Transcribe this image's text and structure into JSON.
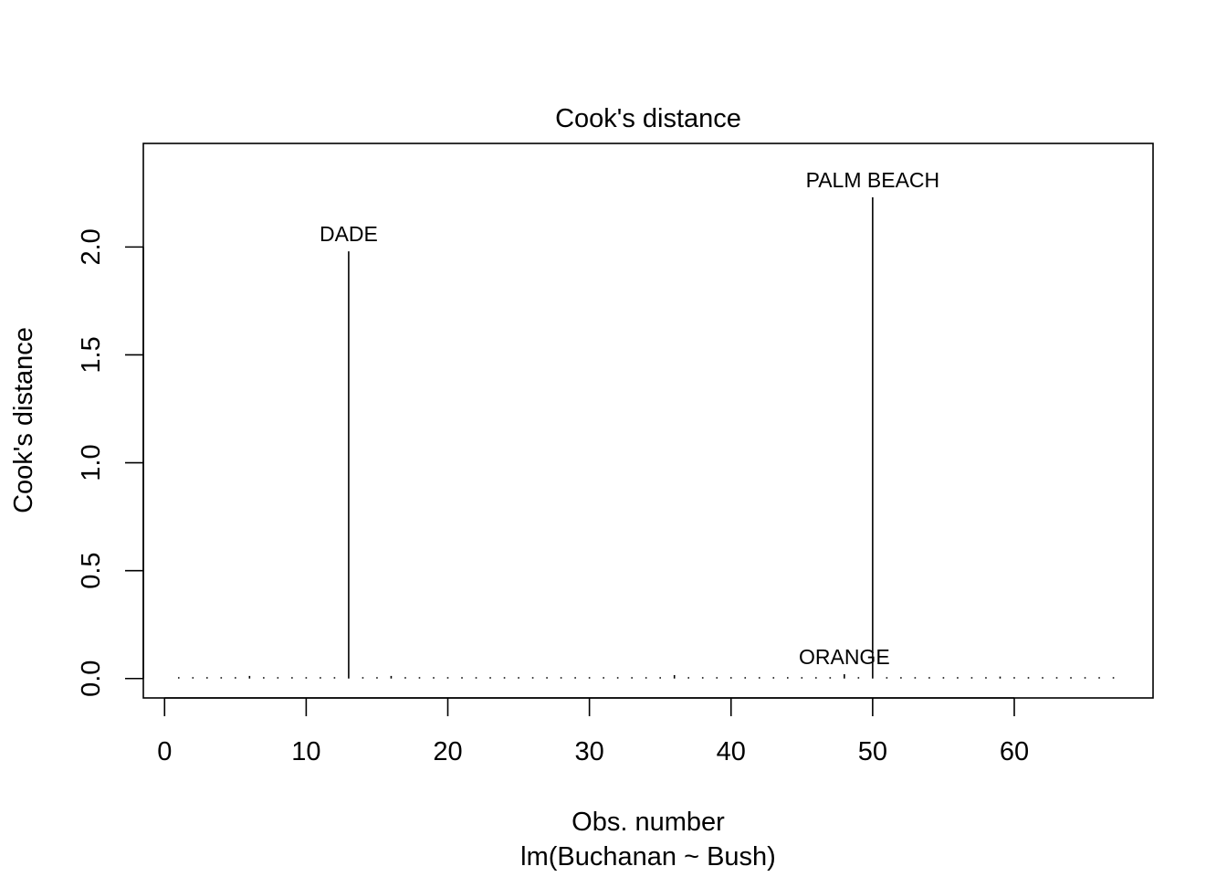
{
  "chart_data": {
    "type": "bar",
    "title": "Cook's distance",
    "xlabel": "Obs. number",
    "subtitle": "lm(Buchanan ~ Bush)",
    "ylabel": "Cook's distance",
    "xlim": [
      -1.5,
      69.8
    ],
    "ylim": [
      -0.09,
      2.48
    ],
    "x_ticks": [
      0,
      10,
      20,
      30,
      40,
      50,
      60
    ],
    "y_ticks": [
      0.0,
      0.5,
      1.0,
      1.5,
      2.0
    ],
    "x_tick_labels": [
      "0",
      "10",
      "20",
      "30",
      "40",
      "50",
      "60"
    ],
    "y_tick_labels": [
      "0.0",
      "0.5",
      "1.0",
      "1.5",
      "2.0"
    ],
    "x": [
      1,
      2,
      3,
      4,
      5,
      6,
      7,
      8,
      9,
      10,
      11,
      12,
      13,
      14,
      15,
      16,
      17,
      18,
      19,
      20,
      21,
      22,
      23,
      24,
      25,
      26,
      27,
      28,
      29,
      30,
      31,
      32,
      33,
      34,
      35,
      36,
      37,
      38,
      39,
      40,
      41,
      42,
      43,
      44,
      45,
      46,
      47,
      48,
      49,
      50,
      51,
      52,
      53,
      54,
      55,
      56,
      57,
      58,
      59,
      60,
      61,
      62,
      63,
      64,
      65,
      66,
      67
    ],
    "values": [
      0.002,
      0.001,
      0.002,
      0.001,
      0.002,
      0.012,
      0.001,
      0.002,
      0.003,
      0.001,
      0.002,
      0.003,
      1.98,
      0.003,
      0.002,
      0.012,
      0.002,
      0.001,
      0.002,
      0.002,
      0.002,
      0.001,
      0.002,
      0.001,
      0.003,
      0.002,
      0.003,
      0.002,
      0.002,
      0.003,
      0.002,
      0.002,
      0.003,
      0.002,
      0.002,
      0.016,
      0.006,
      0.002,
      0.002,
      0.001,
      0.003,
      0.002,
      0.002,
      0.002,
      0.002,
      0.003,
      0.003,
      0.02,
      0.003,
      2.23,
      0.003,
      0.006,
      0.003,
      0.002,
      0.002,
      0.003,
      0.002,
      0.003,
      0.009,
      0.002,
      0.002,
      0.003,
      0.002,
      0.002,
      0.003,
      0.002,
      0.002
    ],
    "annotations": [
      {
        "x": 13,
        "y": 1.98,
        "text": "DADE"
      },
      {
        "x": 50,
        "y": 2.23,
        "text": "PALM BEACH"
      },
      {
        "x": 48,
        "y": 0.02,
        "text": "ORANGE"
      }
    ],
    "grid": false,
    "legend": "none"
  }
}
